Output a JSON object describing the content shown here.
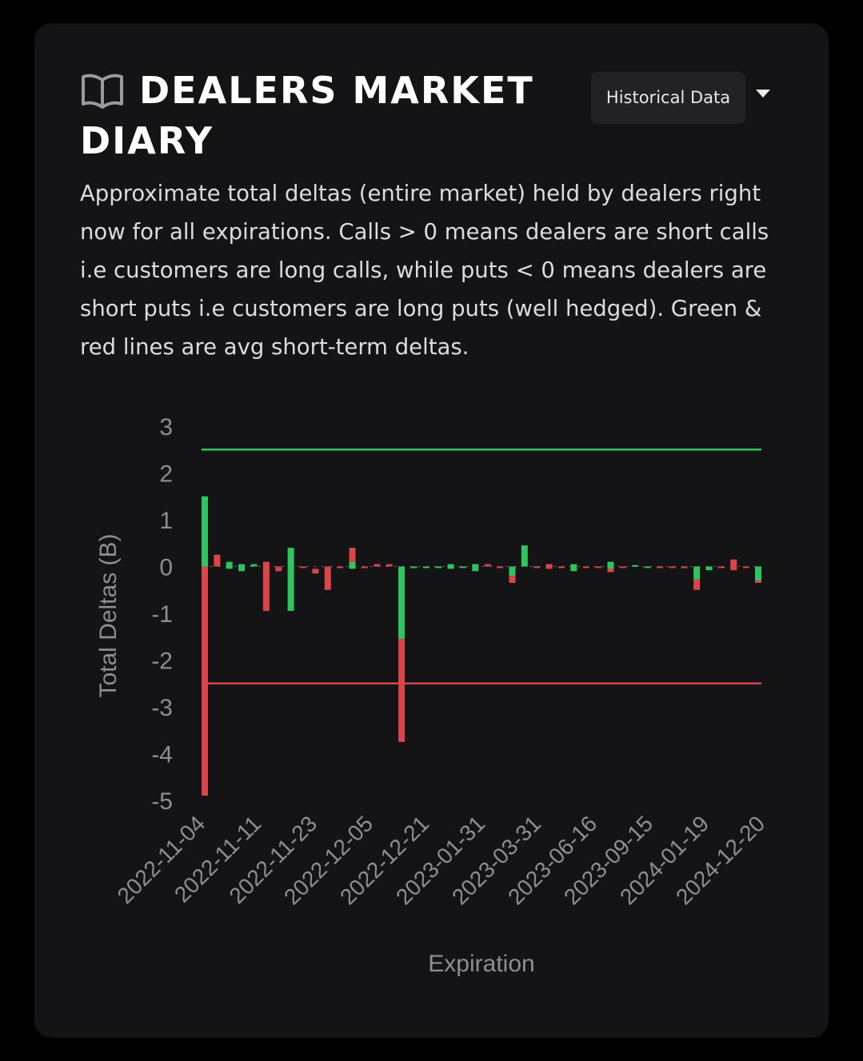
{
  "header": {
    "title": "DEALERS MARKET DIARY",
    "icon": "book-icon",
    "historical_button_label": "Historical Data"
  },
  "description": "Approximate total deltas (entire market) held by dealers right now for all expirations. Calls > 0 means dealers are short calls i.e customers are long calls, while puts < 0 means dealers are short puts i.e customers are long puts (well hedged). Green & red lines are avg short-term deltas.",
  "colors": {
    "green": "#2fc45f",
    "red": "#d9454a",
    "axis_text": "#8e8e8e",
    "card_bg": "#141416"
  },
  "chart_data": {
    "type": "bar",
    "ylabel": "Total Deltas (B)",
    "xlabel": "Expiration",
    "ylim": [
      -5,
      3
    ],
    "yticks": [
      3,
      2,
      1,
      0,
      -1,
      -2,
      -3,
      -4,
      -5
    ],
    "x_tick_labels": [
      "2022-11-04",
      "2022-11-11",
      "2022-11-23",
      "2022-12-05",
      "2022-12-21",
      "2023-01-31",
      "2023-03-31",
      "2023-06-16",
      "2023-09-15",
      "2024-01-19",
      "2024-12-20"
    ],
    "x_tick_indices": [
      0,
      5,
      10,
      15,
      19,
      24,
      29,
      34,
      39,
      44,
      49
    ],
    "n_slots": 50,
    "avg_lines": {
      "green": 2.5,
      "red": -2.5
    },
    "candles": [
      {
        "open": 0,
        "close": 1.5,
        "color": "green"
      },
      {
        "open": 0,
        "close": -4.9,
        "color": "red"
      },
      {
        "open": 0.25,
        "close": 0,
        "color": "red"
      },
      {
        "open": 0.1,
        "close": -0.05,
        "color": "green"
      },
      {
        "open": 0.05,
        "close": -0.1,
        "color": "green"
      },
      {
        "open": 0.05,
        "close": 0,
        "color": "green"
      },
      {
        "open": 0.1,
        "close": -0.95,
        "color": "red"
      },
      {
        "open": 0,
        "close": -0.05,
        "color": "red"
      },
      {
        "open": -0.05,
        "close": -0.1,
        "color": "red"
      },
      {
        "open": 0.4,
        "close": -0.95,
        "color": "green"
      },
      {
        "open": 0,
        "close": 0,
        "color": "red"
      },
      {
        "open": -0.05,
        "close": -0.15,
        "color": "red"
      },
      {
        "open": 0,
        "close": -0.5,
        "color": "red"
      },
      {
        "open": 0,
        "close": 0,
        "color": "red"
      },
      {
        "open": 0.4,
        "close": 0.1,
        "color": "red"
      },
      {
        "open": 0.1,
        "close": -0.05,
        "color": "green"
      },
      {
        "open": 0,
        "close": 0,
        "color": "red"
      },
      {
        "open": 0.05,
        "close": 0,
        "color": "red"
      },
      {
        "open": 0.05,
        "close": 0,
        "color": "red"
      },
      {
        "open": 0,
        "close": -1.55,
        "color": "green"
      },
      {
        "open": -1.55,
        "close": -3.75,
        "color": "red"
      },
      {
        "open": 0,
        "close": -0.02,
        "color": "green"
      },
      {
        "open": 0,
        "close": -0.02,
        "color": "green"
      },
      {
        "open": 0,
        "close": -0.02,
        "color": "green"
      },
      {
        "open": 0.05,
        "close": -0.05,
        "color": "green"
      },
      {
        "open": 0,
        "close": 0,
        "color": "green"
      },
      {
        "open": 0.05,
        "close": -0.1,
        "color": "green"
      },
      {
        "open": 0.05,
        "close": 0,
        "color": "red"
      },
      {
        "open": 0,
        "close": 0,
        "color": "red"
      },
      {
        "open": 0,
        "close": -0.2,
        "color": "green"
      },
      {
        "open": -0.2,
        "close": -0.35,
        "color": "red"
      },
      {
        "open": 0.45,
        "close": 0,
        "color": "green"
      },
      {
        "open": 0,
        "close": 0,
        "color": "red"
      },
      {
        "open": 0.05,
        "close": -0.05,
        "color": "red"
      },
      {
        "open": 0,
        "close": 0,
        "color": "red"
      },
      {
        "open": 0.05,
        "close": -0.1,
        "color": "green"
      },
      {
        "open": 0,
        "close": 0,
        "color": "red"
      },
      {
        "open": 0,
        "close": 0,
        "color": "red"
      },
      {
        "open": 0.1,
        "close": -0.05,
        "color": "green"
      },
      {
        "open": -0.05,
        "close": -0.12,
        "color": "red"
      },
      {
        "open": 0,
        "close": 0,
        "color": "red"
      },
      {
        "open": 0.03,
        "close": 0,
        "color": "green"
      },
      {
        "open": 0,
        "close": -0.02,
        "color": "green"
      },
      {
        "open": 0,
        "close": 0,
        "color": "red"
      },
      {
        "open": 0,
        "close": 0,
        "color": "red"
      },
      {
        "open": 0,
        "close": 0,
        "color": "red"
      },
      {
        "open": 0,
        "close": -0.28,
        "color": "green"
      },
      {
        "open": -0.28,
        "close": -0.5,
        "color": "red"
      },
      {
        "open": 0,
        "close": -0.08,
        "color": "green"
      },
      {
        "open": 0,
        "close": 0,
        "color": "red"
      },
      {
        "open": 0.15,
        "close": -0.08,
        "color": "red"
      },
      {
        "open": 0,
        "close": 0,
        "color": "red"
      },
      {
        "open": 0,
        "close": -0.3,
        "color": "green"
      },
      {
        "open": -0.3,
        "close": -0.35,
        "color": "red"
      }
    ]
  }
}
